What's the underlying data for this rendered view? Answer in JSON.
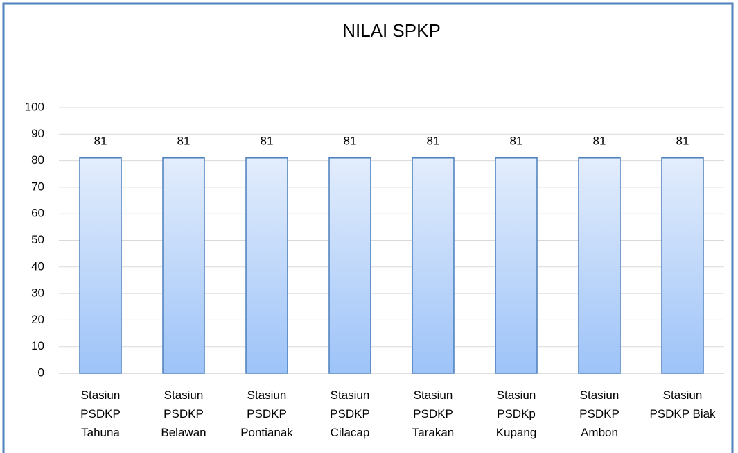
{
  "chart_data": {
    "type": "bar",
    "title": "NILAI SPKP",
    "categories": [
      "Stasiun\nPSDKP\nTahuna",
      "Stasiun\nPSDKP\nBelawan",
      "Stasiun\nPSDKP\nPontianak",
      "Stasiun\nPSDKP\nCilacap",
      "Stasiun\nPSDKP\nTarakan",
      "Stasiun\nPSDKp\nKupang",
      "Stasiun\nPSDKP\nAmbon",
      "Stasiun\nPSDKP Biak"
    ],
    "values": [
      81,
      81,
      81,
      81,
      81,
      81,
      81,
      81
    ],
    "color": "#9dc3f8",
    "ylim": [
      0,
      100
    ],
    "yticks": [
      0,
      10,
      20,
      30,
      40,
      50,
      60,
      70,
      80,
      90,
      100
    ],
    "grid": true
  }
}
